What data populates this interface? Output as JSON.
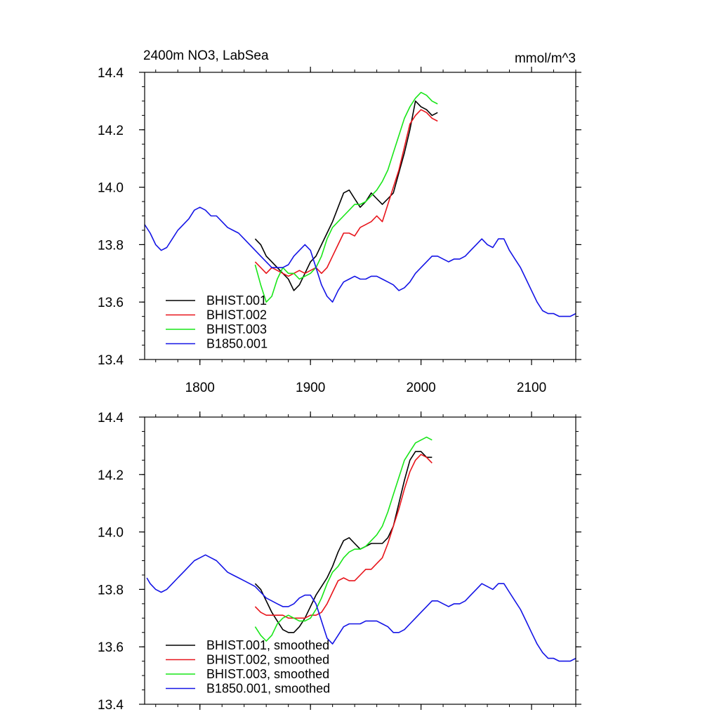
{
  "chart_data": [
    {
      "type": "line",
      "title": "2400m NO3, LabSea",
      "units": "mmol/m^3",
      "xlim": [
        1750,
        2140
      ],
      "ylim": [
        13.4,
        14.4
      ],
      "xticks": [
        1800,
        1900,
        2000,
        2100
      ],
      "xtick_labels": [
        "1800",
        "1900",
        "2000",
        "2100"
      ],
      "yticks": [
        13.4,
        13.6,
        13.8,
        14.0,
        14.2,
        14.4
      ],
      "ytick_labels": [
        "13.4",
        "13.6",
        "13.8",
        "14.0",
        "14.2",
        "14.4"
      ],
      "legend_position": "bottom-left",
      "series": [
        {
          "name": "BHIST.001",
          "color": "#000000",
          "x": [
            1850,
            1855,
            1860,
            1865,
            1870,
            1875,
            1880,
            1885,
            1890,
            1895,
            1900,
            1905,
            1910,
            1915,
            1920,
            1925,
            1930,
            1935,
            1940,
            1945,
            1950,
            1955,
            1960,
            1965,
            1970,
            1975,
            1980,
            1985,
            1990,
            1995,
            2000,
            2005,
            2010,
            2015
          ],
          "y": [
            13.82,
            13.8,
            13.76,
            13.74,
            13.72,
            13.7,
            13.68,
            13.64,
            13.66,
            13.7,
            13.74,
            13.76,
            13.8,
            13.84,
            13.88,
            13.93,
            13.98,
            13.99,
            13.96,
            13.93,
            13.95,
            13.98,
            13.96,
            13.94,
            13.96,
            13.98,
            14.05,
            14.12,
            14.2,
            14.3,
            14.28,
            14.27,
            14.25,
            14.26
          ]
        },
        {
          "name": "BHIST.002",
          "color": "#e8141b",
          "x": [
            1850,
            1855,
            1860,
            1865,
            1870,
            1875,
            1880,
            1885,
            1890,
            1895,
            1900,
            1905,
            1910,
            1915,
            1920,
            1925,
            1930,
            1935,
            1940,
            1945,
            1950,
            1955,
            1960,
            1965,
            1970,
            1975,
            1980,
            1985,
            1990,
            1995,
            2000,
            2005,
            2010,
            2015
          ],
          "y": [
            13.74,
            13.72,
            13.7,
            13.72,
            13.71,
            13.7,
            13.69,
            13.7,
            13.71,
            13.7,
            13.71,
            13.72,
            13.7,
            13.72,
            13.76,
            13.8,
            13.84,
            13.84,
            13.83,
            13.86,
            13.87,
            13.88,
            13.9,
            13.88,
            13.94,
            14.0,
            14.06,
            14.14,
            14.22,
            14.25,
            14.27,
            14.26,
            14.24,
            14.23
          ]
        },
        {
          "name": "BHIST.003",
          "color": "#19e619",
          "x": [
            1850,
            1855,
            1860,
            1865,
            1870,
            1875,
            1880,
            1885,
            1890,
            1895,
            1900,
            1905,
            1910,
            1915,
            1920,
            1925,
            1930,
            1935,
            1940,
            1945,
            1950,
            1955,
            1960,
            1965,
            1970,
            1975,
            1980,
            1985,
            1990,
            1995,
            2000,
            2005,
            2010,
            2015
          ],
          "y": [
            13.73,
            13.66,
            13.6,
            13.62,
            13.68,
            13.72,
            13.7,
            13.7,
            13.68,
            13.69,
            13.7,
            13.72,
            13.76,
            13.82,
            13.86,
            13.88,
            13.9,
            13.92,
            13.94,
            13.94,
            13.95,
            13.97,
            13.99,
            14.02,
            14.06,
            14.12,
            14.18,
            14.24,
            14.28,
            14.31,
            14.33,
            14.32,
            14.3,
            14.29
          ]
        },
        {
          "name": "B1850.001",
          "color": "#1414e6",
          "x": [
            1750,
            1755,
            1760,
            1765,
            1770,
            1775,
            1780,
            1785,
            1790,
            1795,
            1800,
            1805,
            1810,
            1815,
            1820,
            1825,
            1830,
            1835,
            1840,
            1845,
            1850,
            1855,
            1860,
            1865,
            1870,
            1875,
            1880,
            1885,
            1890,
            1895,
            1900,
            1905,
            1910,
            1915,
            1920,
            1925,
            1930,
            1935,
            1940,
            1945,
            1950,
            1955,
            1960,
            1965,
            1970,
            1975,
            1980,
            1985,
            1990,
            1995,
            2000,
            2005,
            2010,
            2015,
            2020,
            2025,
            2030,
            2035,
            2040,
            2045,
            2050,
            2055,
            2060,
            2065,
            2070,
            2075,
            2080,
            2085,
            2090,
            2095,
            2100,
            2105,
            2110,
            2115,
            2120,
            2125,
            2130,
            2135,
            2140
          ],
          "y": [
            13.87,
            13.84,
            13.8,
            13.78,
            13.79,
            13.82,
            13.85,
            13.87,
            13.89,
            13.92,
            13.93,
            13.92,
            13.9,
            13.9,
            13.88,
            13.86,
            13.85,
            13.84,
            13.82,
            13.8,
            13.78,
            13.76,
            13.74,
            13.72,
            13.72,
            13.72,
            13.73,
            13.76,
            13.78,
            13.8,
            13.78,
            13.72,
            13.66,
            13.62,
            13.6,
            13.64,
            13.67,
            13.68,
            13.69,
            13.68,
            13.68,
            13.69,
            13.69,
            13.68,
            13.67,
            13.66,
            13.64,
            13.65,
            13.67,
            13.7,
            13.72,
            13.74,
            13.76,
            13.76,
            13.75,
            13.74,
            13.75,
            13.75,
            13.76,
            13.78,
            13.8,
            13.82,
            13.8,
            13.79,
            13.82,
            13.82,
            13.78,
            13.75,
            13.72,
            13.68,
            13.64,
            13.6,
            13.57,
            13.56,
            13.56,
            13.55,
            13.55,
            13.55,
            13.56
          ]
        }
      ]
    },
    {
      "type": "line",
      "title": "",
      "xlim": [
        1750,
        2140
      ],
      "ylim": [
        13.4,
        14.4
      ],
      "xticks": [
        1800,
        1900,
        2000,
        2100
      ],
      "xtick_labels": [],
      "yticks": [
        13.4,
        13.6,
        13.8,
        14.0,
        14.2,
        14.4
      ],
      "ytick_labels": [
        "13.4",
        "13.6",
        "13.8",
        "14.0",
        "14.2",
        "14.4"
      ],
      "legend_position": "bottom-left",
      "series": [
        {
          "name": "BHIST.001, smoothed",
          "color": "#000000",
          "x": [
            1850,
            1855,
            1860,
            1865,
            1870,
            1875,
            1880,
            1885,
            1890,
            1895,
            1900,
            1905,
            1910,
            1915,
            1920,
            1925,
            1930,
            1935,
            1940,
            1945,
            1950,
            1955,
            1960,
            1965,
            1970,
            1975,
            1980,
            1985,
            1990,
            1995,
            2000,
            2005,
            2010
          ],
          "y": [
            13.82,
            13.8,
            13.76,
            13.72,
            13.69,
            13.66,
            13.65,
            13.65,
            13.67,
            13.7,
            13.74,
            13.78,
            13.81,
            13.84,
            13.88,
            13.93,
            13.97,
            13.98,
            13.96,
            13.94,
            13.95,
            13.96,
            13.96,
            13.96,
            13.98,
            14.02,
            14.1,
            14.18,
            14.25,
            14.28,
            14.28,
            14.26,
            14.26
          ]
        },
        {
          "name": "BHIST.002, smoothed",
          "color": "#e8141b",
          "x": [
            1850,
            1855,
            1860,
            1865,
            1870,
            1875,
            1880,
            1885,
            1890,
            1895,
            1900,
            1905,
            1910,
            1915,
            1920,
            1925,
            1930,
            1935,
            1940,
            1945,
            1950,
            1955,
            1960,
            1965,
            1970,
            1975,
            1980,
            1985,
            1990,
            1995,
            2000,
            2005,
            2010
          ],
          "y": [
            13.74,
            13.72,
            13.71,
            13.71,
            13.71,
            13.71,
            13.7,
            13.7,
            13.7,
            13.7,
            13.71,
            13.71,
            13.72,
            13.75,
            13.79,
            13.83,
            13.84,
            13.83,
            13.83,
            13.85,
            13.87,
            13.87,
            13.89,
            13.91,
            13.96,
            14.02,
            14.08,
            14.15,
            14.21,
            14.25,
            14.27,
            14.26,
            14.24
          ]
        },
        {
          "name": "BHIST.003, smoothed",
          "color": "#19e619",
          "x": [
            1850,
            1855,
            1860,
            1865,
            1870,
            1875,
            1880,
            1885,
            1890,
            1895,
            1900,
            1905,
            1910,
            1915,
            1920,
            1925,
            1930,
            1935,
            1940,
            1945,
            1950,
            1955,
            1960,
            1965,
            1970,
            1975,
            1980,
            1985,
            1990,
            1995,
            2000,
            2005,
            2010
          ],
          "y": [
            13.67,
            13.64,
            13.62,
            13.64,
            13.68,
            13.7,
            13.71,
            13.7,
            13.69,
            13.69,
            13.7,
            13.73,
            13.77,
            13.82,
            13.86,
            13.88,
            13.91,
            13.93,
            13.94,
            13.94,
            13.95,
            13.97,
            13.99,
            14.02,
            14.07,
            14.13,
            14.19,
            14.25,
            14.28,
            14.31,
            14.32,
            14.33,
            14.32
          ]
        },
        {
          "name": "B1850.001, smoothed",
          "color": "#1414e6",
          "x": [
            1752,
            1755,
            1760,
            1765,
            1770,
            1775,
            1780,
            1785,
            1790,
            1795,
            1800,
            1805,
            1810,
            1815,
            1820,
            1825,
            1830,
            1835,
            1840,
            1845,
            1850,
            1855,
            1860,
            1865,
            1870,
            1875,
            1880,
            1885,
            1890,
            1895,
            1900,
            1905,
            1910,
            1915,
            1920,
            1925,
            1930,
            1935,
            1940,
            1945,
            1950,
            1955,
            1960,
            1965,
            1970,
            1975,
            1980,
            1985,
            1990,
            1995,
            2000,
            2005,
            2010,
            2015,
            2020,
            2025,
            2030,
            2035,
            2040,
            2045,
            2050,
            2055,
            2060,
            2065,
            2070,
            2075,
            2080,
            2085,
            2090,
            2095,
            2100,
            2105,
            2110,
            2115,
            2120,
            2125,
            2130,
            2135,
            2140
          ],
          "y": [
            13.84,
            13.82,
            13.8,
            13.79,
            13.8,
            13.82,
            13.84,
            13.86,
            13.88,
            13.9,
            13.91,
            13.92,
            13.91,
            13.9,
            13.88,
            13.86,
            13.85,
            13.84,
            13.83,
            13.82,
            13.81,
            13.79,
            13.77,
            13.76,
            13.75,
            13.74,
            13.74,
            13.75,
            13.77,
            13.78,
            13.78,
            13.75,
            13.69,
            13.63,
            13.61,
            13.64,
            13.67,
            13.68,
            13.68,
            13.68,
            13.69,
            13.69,
            13.69,
            13.68,
            13.67,
            13.65,
            13.65,
            13.66,
            13.68,
            13.7,
            13.72,
            13.74,
            13.76,
            13.76,
            13.75,
            13.74,
            13.75,
            13.75,
            13.76,
            13.78,
            13.8,
            13.82,
            13.81,
            13.8,
            13.82,
            13.82,
            13.79,
            13.76,
            13.73,
            13.69,
            13.65,
            13.61,
            13.58,
            13.56,
            13.56,
            13.55,
            13.55,
            13.55,
            13.56
          ]
        }
      ]
    }
  ]
}
